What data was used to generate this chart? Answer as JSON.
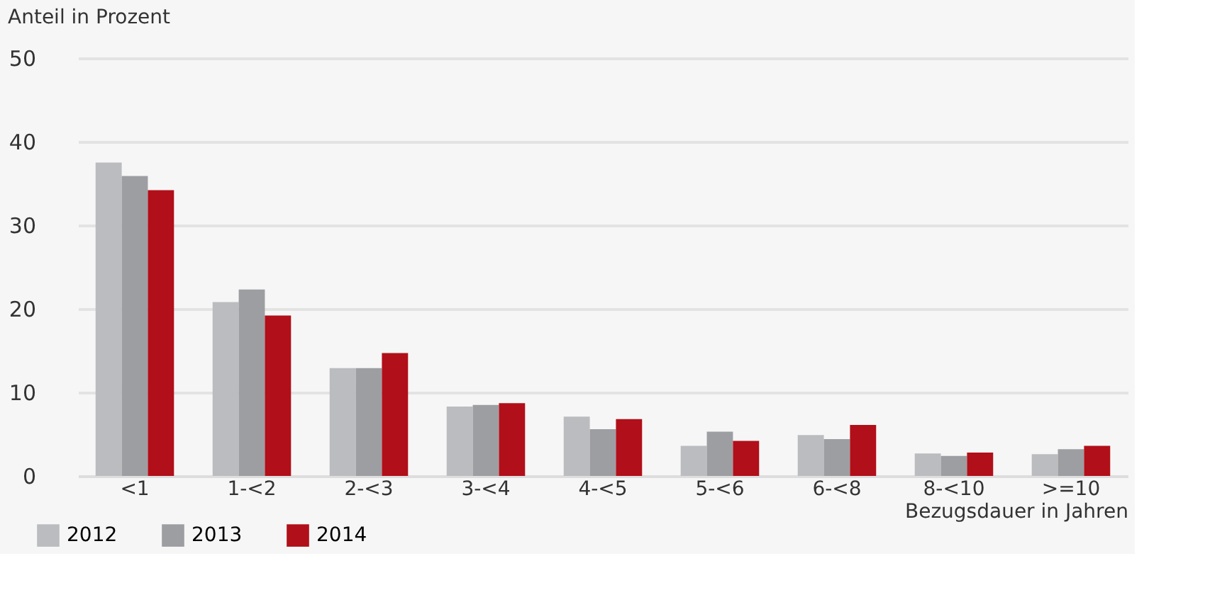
{
  "chart_data": {
    "type": "bar",
    "ylabel": "Anteil in Prozent",
    "xlabel": "Bezugsdauer in Jahren",
    "categories": [
      "<1",
      "1-<2",
      "2-<3",
      "3-<4",
      "4-<5",
      "5-<6",
      "6-<8",
      "8-<10",
      ">=10"
    ],
    "series": [
      {
        "name": "2012",
        "color": "#bbbcbf",
        "values": [
          37.5,
          20.8,
          12.9,
          8.3,
          7.1,
          3.6,
          4.9,
          2.7,
          2.6
        ]
      },
      {
        "name": "2013",
        "color": "#9d9ea2",
        "values": [
          35.9,
          22.3,
          12.9,
          8.5,
          5.6,
          5.3,
          4.4,
          2.4,
          3.2
        ]
      },
      {
        "name": "2014",
        "color": "#b10f19",
        "values": [
          34.2,
          19.2,
          14.7,
          8.7,
          6.8,
          4.2,
          6.1,
          2.8,
          3.6
        ]
      }
    ],
    "ylim": [
      0,
      50
    ],
    "yticks": [
      0,
      10,
      20,
      30,
      40,
      50
    ],
    "grid": "y",
    "legend": "bottom left"
  }
}
